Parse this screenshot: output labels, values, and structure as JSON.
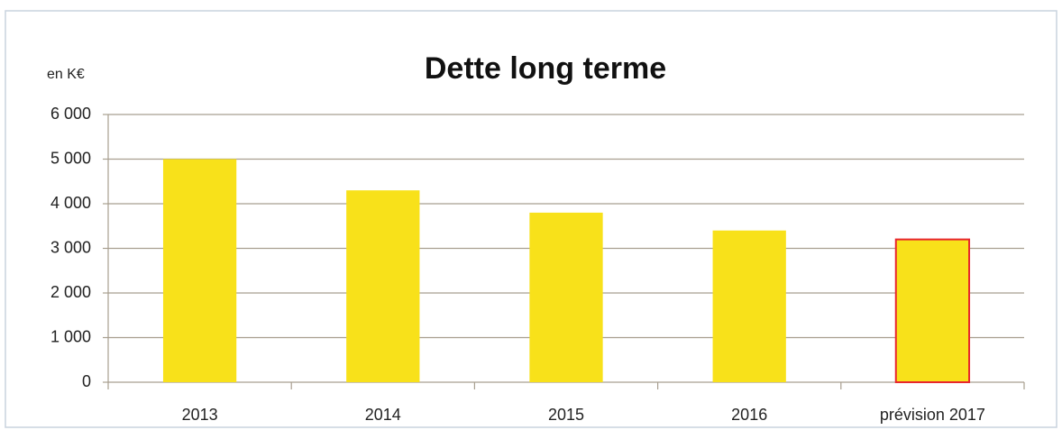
{
  "chart_data": {
    "type": "bar",
    "title": "Dette long terme",
    "y_unit": "en K€",
    "categories": [
      "2013",
      "2014",
      "2015",
      "2016",
      "prévision 2017"
    ],
    "values": [
      5000,
      4300,
      3800,
      3400,
      3200
    ],
    "color": "#f8e11a",
    "edgecolors": [
      null,
      null,
      null,
      null,
      "#e8262d"
    ],
    "ylim": [
      0,
      6000
    ],
    "yticks": [
      0,
      {
        "value": 1000,
        "label": "1 000"
      },
      {
        "value": 2000,
        "label": "2 000"
      },
      {
        "value": 3000,
        "label": "3 000"
      },
      {
        "value": 4000,
        "label": "4 000"
      },
      {
        "value": 5000,
        "label": "5 000"
      },
      {
        "value": 6000,
        "label": "6 000"
      }
    ],
    "grid": true
  }
}
